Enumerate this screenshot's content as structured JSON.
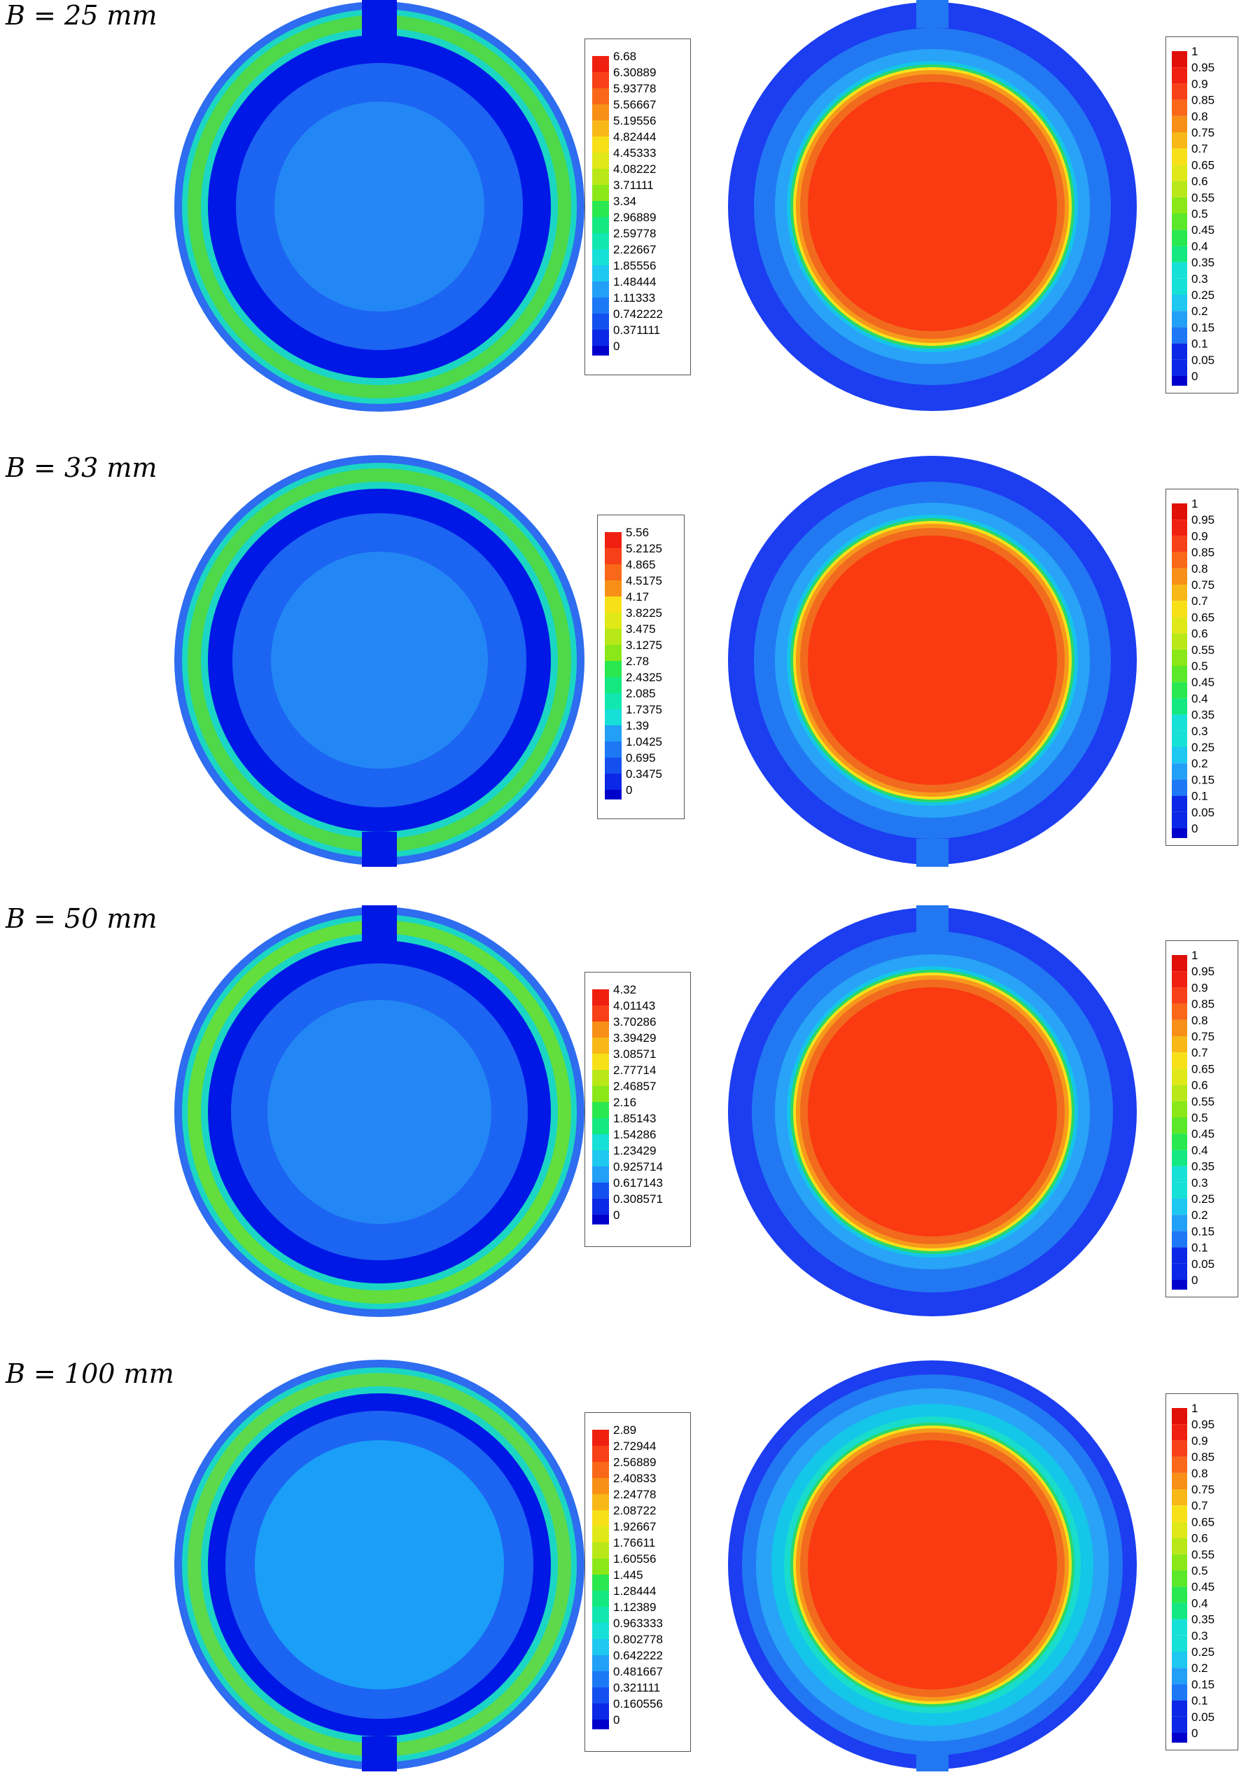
{
  "rows": [
    {
      "label": "B = 25 mm",
      "left_legend": [
        "6.68",
        "6.30889",
        "5.93778",
        "5.56667",
        "5.19556",
        "4.82444",
        "4.45333",
        "4.08222",
        "3.71111",
        "3.34",
        "2.96889",
        "2.59778",
        "2.22667",
        "1.85556",
        "1.48444",
        "1.11333",
        "0.742222",
        "0.371111",
        "0"
      ],
      "right_legend": [
        "1",
        "0.95",
        "0.9",
        "0.85",
        "0.8",
        "0.75",
        "0.7",
        "0.65",
        "0.6",
        "0.55",
        "0.5",
        "0.45",
        "0.4",
        "0.35",
        "0.3",
        "0.25",
        "0.2",
        "0.15",
        "0.1",
        "0.05",
        "0"
      ]
    },
    {
      "label": "B = 33 mm",
      "left_legend": [
        "5.56",
        "5.2125",
        "4.865",
        "4.5175",
        "4.17",
        "3.8225",
        "3.475",
        "3.1275",
        "2.78",
        "2.4325",
        "2.085",
        "1.7375",
        "1.39",
        "1.0425",
        "0.695",
        "0.3475",
        "0"
      ],
      "right_legend": [
        "1",
        "0.95",
        "0.9",
        "0.85",
        "0.8",
        "0.75",
        "0.7",
        "0.65",
        "0.6",
        "0.55",
        "0.5",
        "0.45",
        "0.4",
        "0.35",
        "0.3",
        "0.25",
        "0.2",
        "0.15",
        "0.1",
        "0.05",
        "0"
      ]
    },
    {
      "label": "B = 50 mm",
      "left_legend": [
        "4.32",
        "4.01143",
        "3.70286",
        "3.39429",
        "3.08571",
        "2.77714",
        "2.46857",
        "2.16",
        "1.85143",
        "1.54286",
        "1.23429",
        "0.925714",
        "0.617143",
        "0.308571",
        "0"
      ],
      "right_legend": [
        "1",
        "0.95",
        "0.9",
        "0.85",
        "0.8",
        "0.75",
        "0.7",
        "0.65",
        "0.6",
        "0.55",
        "0.5",
        "0.45",
        "0.4",
        "0.35",
        "0.3",
        "0.25",
        "0.2",
        "0.15",
        "0.1",
        "0.05",
        "0"
      ]
    },
    {
      "label": "B = 100 mm",
      "left_legend": [
        "2.89",
        "2.72944",
        "2.56889",
        "2.40833",
        "2.24778",
        "2.08722",
        "1.92667",
        "1.76611",
        "1.60556",
        "1.445",
        "1.28444",
        "1.12389",
        "0.963333",
        "0.802778",
        "0.642222",
        "0.481667",
        "0.321111",
        "0.160556",
        "0"
      ],
      "right_legend": [
        "1",
        "0.95",
        "0.9",
        "0.85",
        "0.8",
        "0.75",
        "0.7",
        "0.65",
        "0.6",
        "0.55",
        "0.5",
        "0.45",
        "0.4",
        "0.35",
        "0.3",
        "0.25",
        "0.2",
        "0.15",
        "0.1",
        "0.05",
        "0"
      ]
    }
  ]
}
